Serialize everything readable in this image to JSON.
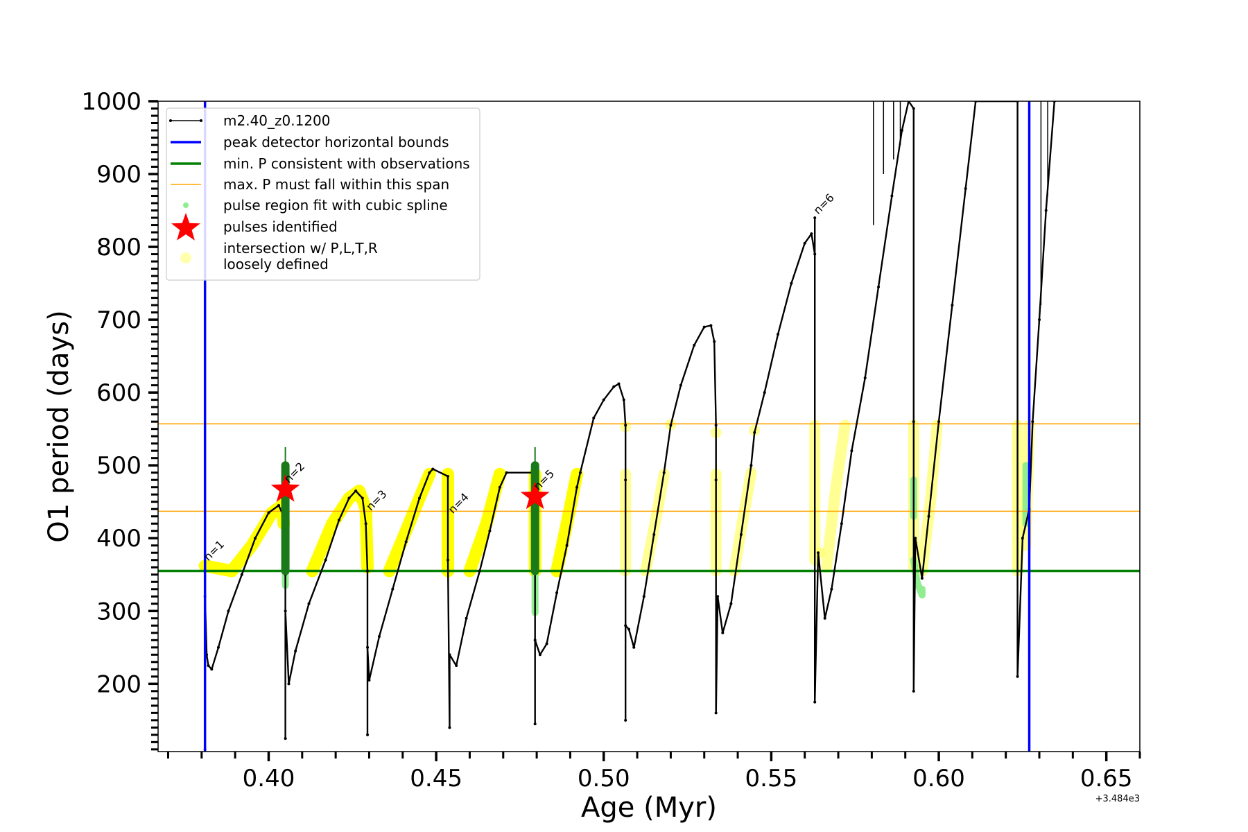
{
  "chart_data": {
    "type": "line",
    "xlabel": "Age (Myr)",
    "ylabel": "O1 period (days)",
    "x_offset_label": "+3.484e3",
    "xlim": [
      0.367,
      0.66
    ],
    "ylim": [
      107,
      1000
    ],
    "x_ticks": [
      "0.40",
      "0.45",
      "0.50",
      "0.55",
      "0.60",
      "0.65"
    ],
    "x_tick_values": [
      0.4,
      0.45,
      0.5,
      0.55,
      0.6,
      0.65
    ],
    "y_ticks": [
      "200",
      "300",
      "400",
      "500",
      "600",
      "700",
      "800",
      "900",
      "1000"
    ],
    "y_tick_values": [
      200,
      300,
      400,
      500,
      600,
      700,
      800,
      900,
      1000
    ],
    "legend_position": "upper-left",
    "legend": [
      {
        "label": "m2.40_z0.1200",
        "kind": "line-dot",
        "color": "#000000"
      },
      {
        "label": "peak detector horizontal bounds",
        "kind": "line",
        "color": "#0000ff"
      },
      {
        "label": "min. P consistent with observations",
        "kind": "line",
        "color": "#008000"
      },
      {
        "label": "max. P must fall within this span",
        "kind": "line-thin",
        "color": "#ffa500"
      },
      {
        "label": "pulse region fit with cubic spline",
        "kind": "dot",
        "color": "#90ee90"
      },
      {
        "label": "pulses identified",
        "kind": "star",
        "color": "#ff0000"
      },
      {
        "label": "intersection w/ P,L,T,R",
        "label2": "loosely defined",
        "kind": "circle",
        "color": "#ffff99"
      }
    ],
    "vertical_lines": {
      "color": "#0000ff",
      "x": [
        0.381,
        0.627
      ]
    },
    "hlines_min": {
      "color": "#008000",
      "y": [
        355
      ]
    },
    "hlines_max": {
      "color": "#ffa500",
      "y": [
        437,
        557
      ]
    },
    "series_main": {
      "name": "m2.40_z0.1200",
      "color": "#000000",
      "points": [
        [
          0.381,
          110
        ],
        [
          0.381,
          320
        ],
        [
          0.3815,
          240
        ],
        [
          0.382,
          225
        ],
        [
          0.383,
          220
        ],
        [
          0.385,
          250
        ],
        [
          0.388,
          300
        ],
        [
          0.392,
          350
        ],
        [
          0.396,
          400
        ],
        [
          0.4,
          435
        ],
        [
          0.403,
          445
        ],
        [
          0.4045,
          430
        ],
        [
          0.405,
          350
        ],
        [
          0.405,
          125
        ],
        [
          0.405,
          300
        ],
        [
          0.406,
          200
        ],
        [
          0.408,
          245
        ],
        [
          0.412,
          310
        ],
        [
          0.417,
          370
        ],
        [
          0.421,
          425
        ],
        [
          0.424,
          455
        ],
        [
          0.426,
          465
        ],
        [
          0.428,
          455
        ],
        [
          0.429,
          420
        ],
        [
          0.4295,
          355
        ],
        [
          0.4295,
          130
        ],
        [
          0.4295,
          250
        ],
        [
          0.43,
          205
        ],
        [
          0.433,
          265
        ],
        [
          0.437,
          330
        ],
        [
          0.441,
          395
        ],
        [
          0.445,
          455
        ],
        [
          0.448,
          490
        ],
        [
          0.449,
          495
        ],
        [
          0.4535,
          485
        ],
        [
          0.4535,
          370
        ],
        [
          0.454,
          140
        ],
        [
          0.454,
          240
        ],
        [
          0.456,
          225
        ],
        [
          0.459,
          290
        ],
        [
          0.463,
          355
        ],
        [
          0.466,
          410
        ],
        [
          0.469,
          470
        ],
        [
          0.471,
          490
        ],
        [
          0.4795,
          490
        ],
        [
          0.4795,
          145
        ],
        [
          0.4795,
          260
        ],
        [
          0.481,
          240
        ],
        [
          0.483,
          255
        ],
        [
          0.486,
          325
        ],
        [
          0.489,
          390
        ],
        [
          0.492,
          470
        ],
        [
          0.493,
          490
        ],
        [
          0.497,
          565
        ],
        [
          0.5,
          590
        ],
        [
          0.503,
          608
        ],
        [
          0.5045,
          612
        ],
        [
          0.506,
          590
        ],
        [
          0.5065,
          555
        ],
        [
          0.5065,
          480
        ],
        [
          0.5065,
          150
        ],
        [
          0.5065,
          280
        ],
        [
          0.5075,
          275
        ],
        [
          0.509,
          250
        ],
        [
          0.512,
          320
        ],
        [
          0.515,
          405
        ],
        [
          0.518,
          490
        ],
        [
          0.52,
          555
        ],
        [
          0.523,
          610
        ],
        [
          0.527,
          665
        ],
        [
          0.53,
          690
        ],
        [
          0.532,
          692
        ],
        [
          0.533,
          670
        ],
        [
          0.5335,
          555
        ],
        [
          0.5335,
          480
        ],
        [
          0.5335,
          160
        ],
        [
          0.534,
          320
        ],
        [
          0.5355,
          270
        ],
        [
          0.538,
          310
        ],
        [
          0.541,
          405
        ],
        [
          0.544,
          500
        ],
        [
          0.545,
          545
        ],
        [
          0.548,
          600
        ],
        [
          0.552,
          680
        ],
        [
          0.556,
          750
        ],
        [
          0.56,
          805
        ],
        [
          0.562,
          818
        ],
        [
          0.563,
          790
        ],
        [
          0.563,
          840
        ],
        [
          0.563,
          175
        ],
        [
          0.564,
          380
        ],
        [
          0.566,
          290
        ],
        [
          0.568,
          330
        ],
        [
          0.571,
          420
        ],
        [
          0.574,
          520
        ],
        [
          0.578,
          620
        ],
        [
          0.582,
          745
        ],
        [
          0.586,
          870
        ],
        [
          0.589,
          960
        ],
        [
          0.591,
          1000
        ],
        [
          0.5925,
          990
        ],
        [
          0.5925,
          560
        ],
        [
          0.5925,
          190
        ],
        [
          0.593,
          400
        ],
        [
          0.595,
          345
        ],
        [
          0.597,
          430
        ],
        [
          0.6,
          560
        ],
        [
          0.604,
          720
        ],
        [
          0.608,
          880
        ],
        [
          0.611,
          1000
        ],
        [
          0.6235,
          1000
        ],
        [
          0.6235,
          210
        ],
        [
          0.625,
          400
        ],
        [
          0.627,
          440
        ],
        [
          0.628,
          560
        ],
        [
          0.63,
          700
        ],
        [
          0.632,
          850
        ],
        [
          0.6345,
          1000
        ]
      ]
    },
    "series_spikes": {
      "name": "",
      "color": "#000000",
      "segments": [
        [
          [
            0.5805,
            1000
          ],
          [
            0.5805,
            830
          ]
        ],
        [
          [
            0.5835,
            1000
          ],
          [
            0.5835,
            900
          ]
        ],
        [
          [
            0.5865,
            1000
          ],
          [
            0.5865,
            920
          ]
        ],
        [
          [
            0.5885,
            1000
          ],
          [
            0.5885,
            940
          ]
        ],
        [
          [
            0.6305,
            1000
          ],
          [
            0.6305,
            720
          ]
        ],
        [
          [
            0.6325,
            1000
          ],
          [
            0.6325,
            870
          ]
        ]
      ]
    },
    "series_yellow": {
      "name": "intersection w/ P,L,T,R loosely defined",
      "color": "#ffff00",
      "bold_segments": [
        [
          [
            0.381,
            362
          ],
          [
            0.389,
            355
          ],
          [
            0.395,
            390
          ],
          [
            0.401,
            435
          ],
          [
            0.404,
            445
          ]
        ],
        [
          [
            0.404,
            445
          ],
          [
            0.4045,
            420
          ]
        ],
        [
          [
            0.413,
            355
          ],
          [
            0.419,
            420
          ],
          [
            0.424,
            455
          ],
          [
            0.427,
            465
          ],
          [
            0.429,
            440
          ],
          [
            0.4295,
            360
          ]
        ],
        [
          [
            0.436,
            355
          ],
          [
            0.441,
            410
          ],
          [
            0.445,
            455
          ],
          [
            0.448,
            488
          ]
        ],
        [
          [
            0.4535,
            355
          ],
          [
            0.4535,
            488
          ]
        ],
        [
          [
            0.46,
            355
          ],
          [
            0.465,
            420
          ],
          [
            0.469,
            488
          ]
        ],
        [
          [
            0.4795,
            355
          ],
          [
            0.4795,
            488
          ]
        ],
        [
          [
            0.486,
            355
          ],
          [
            0.489,
            420
          ],
          [
            0.492,
            488
          ]
        ]
      ],
      "faint_segments": [
        [
          [
            0.5065,
            355
          ],
          [
            0.5065,
            488
          ]
        ],
        [
          [
            0.5065,
            553
          ]
        ],
        [
          [
            0.5125,
            355
          ],
          [
            0.5155,
            425
          ],
          [
            0.518,
            488
          ]
        ],
        [
          [
            0.52,
            556
          ]
        ],
        [
          [
            0.5335,
            355
          ],
          [
            0.5335,
            488
          ]
        ],
        [
          [
            0.5335,
            545
          ]
        ],
        [
          [
            0.539,
            355
          ],
          [
            0.5415,
            425
          ],
          [
            0.544,
            490
          ]
        ],
        [
          [
            0.545,
            548
          ]
        ],
        [
          [
            0.563,
            370
          ],
          [
            0.563,
            555
          ]
        ],
        [
          [
            0.5645,
            380
          ]
        ],
        [
          [
            0.5665,
            360
          ],
          [
            0.569,
            460
          ],
          [
            0.572,
            555
          ]
        ],
        [
          [
            0.5925,
            360
          ],
          [
            0.5925,
            555
          ]
        ],
        [
          [
            0.595,
            355
          ],
          [
            0.5975,
            450
          ],
          [
            0.5995,
            555
          ]
        ],
        [
          [
            0.6235,
            355
          ],
          [
            0.6235,
            555
          ]
        ],
        [
          [
            0.626,
            390
          ],
          [
            0.627,
            555
          ]
        ]
      ]
    },
    "series_green_dark": {
      "name": "",
      "color": "#1a7a1a",
      "segments": [
        [
          [
            0.405,
            355
          ],
          [
            0.405,
            500
          ]
        ],
        [
          [
            0.4795,
            355
          ],
          [
            0.4795,
            500
          ]
        ]
      ]
    },
    "series_green_thin": {
      "name": "",
      "color": "#1a7a1a",
      "segments": [
        [
          [
            0.405,
            500
          ],
          [
            0.405,
            525
          ]
        ],
        [
          [
            0.4795,
            500
          ],
          [
            0.4795,
            525
          ]
        ]
      ]
    },
    "series_lightgreen": {
      "name": "pulse region fit with cubic spline",
      "color": "#90ee90",
      "segments": [
        [
          [
            0.405,
            355
          ],
          [
            0.405,
            335
          ]
        ],
        [
          [
            0.4795,
            355
          ],
          [
            0.4795,
            298
          ]
        ],
        [
          [
            0.5925,
            370
          ],
          [
            0.5935,
            340
          ],
          [
            0.595,
            322
          ],
          [
            0.595,
            330
          ]
        ],
        [
          [
            0.5925,
            480
          ],
          [
            0.5925,
            430
          ]
        ],
        [
          [
            0.626,
            420
          ],
          [
            0.626,
            500
          ]
        ]
      ]
    },
    "pulses": [
      {
        "x": 0.405,
        "y": 467
      },
      {
        "x": 0.4795,
        "y": 457
      }
    ],
    "annotations": [
      {
        "text": "n=1",
        "x": 0.382,
        "y": 368
      },
      {
        "text": "n=2",
        "x": 0.406,
        "y": 475
      },
      {
        "text": "n=3",
        "x": 0.4305,
        "y": 437
      },
      {
        "text": "n=4",
        "x": 0.455,
        "y": 433
      },
      {
        "text": "n=5",
        "x": 0.4805,
        "y": 465
      },
      {
        "text": "n=6",
        "x": 0.564,
        "y": 844
      }
    ]
  }
}
